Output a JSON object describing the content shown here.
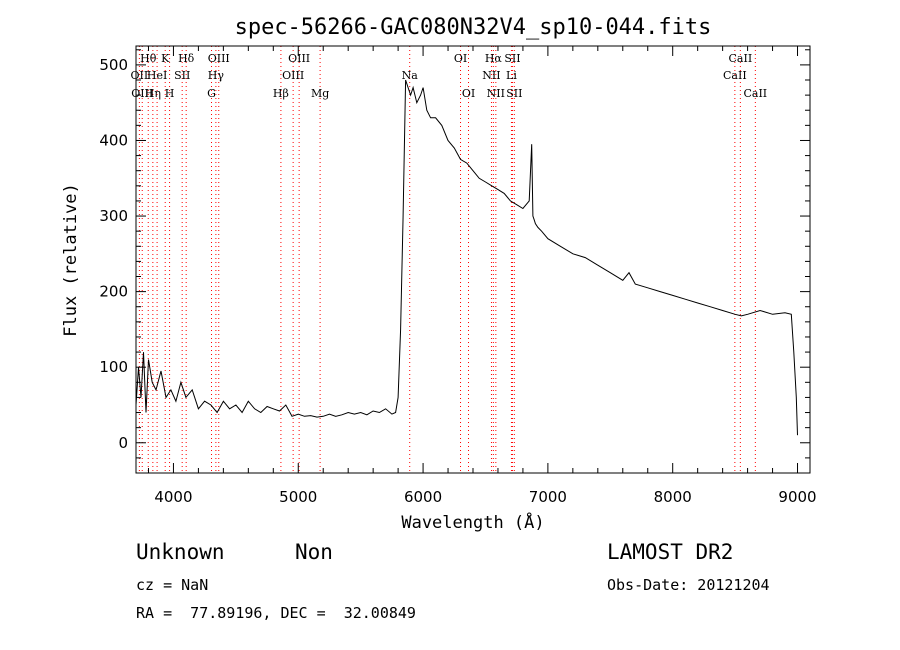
{
  "chart_data": {
    "type": "line",
    "title": "spec-56266-GAC080N32V4_sp10-044.fits",
    "xlabel": "Wavelength (Å)",
    "ylabel": "Flux (relative)",
    "xlim": [
      3700,
      9100
    ],
    "ylim": [
      -40,
      525
    ],
    "xticks": [
      4000,
      5000,
      6000,
      7000,
      8000,
      9000
    ],
    "yticks": [
      0,
      100,
      200,
      300,
      400,
      500
    ],
    "line_color": "#000000",
    "marker_color": "#ff0000",
    "series": [
      {
        "values_x": [
          3700,
          3720,
          3740,
          3760,
          3780,
          3800,
          3830,
          3860,
          3900,
          3940,
          3980,
          4020,
          4060,
          4100,
          4150,
          4200,
          4250,
          4300,
          4350,
          4400,
          4450,
          4500,
          4550,
          4600,
          4650,
          4700,
          4750,
          4800,
          4850,
          4900,
          4950,
          5000,
          5050,
          5100,
          5150,
          5200,
          5250,
          5300,
          5350,
          5400,
          5450,
          5500,
          5550,
          5600,
          5650,
          5700,
          5750,
          5780,
          5800,
          5820,
          5840,
          5860,
          5880,
          5900,
          5920,
          5950,
          5980,
          6000,
          6030,
          6060,
          6100,
          6150,
          6200,
          6250,
          6300,
          6350,
          6400,
          6450,
          6500,
          6550,
          6600,
          6650,
          6700,
          6750,
          6800,
          6850,
          6870,
          6880,
          6890,
          6900,
          6920,
          6950,
          7000,
          7100,
          7200,
          7300,
          7400,
          7500,
          7600,
          7650,
          7700,
          7800,
          7900,
          8000,
          8100,
          8200,
          8300,
          8400,
          8500,
          8550,
          8600,
          8700,
          8800,
          8900,
          8950,
          8970,
          8990,
          9000
        ],
        "values_y": [
          50,
          100,
          60,
          120,
          40,
          110,
          80,
          70,
          95,
          60,
          70,
          55,
          80,
          60,
          70,
          45,
          55,
          50,
          40,
          55,
          45,
          50,
          40,
          55,
          45,
          40,
          48,
          45,
          42,
          50,
          35,
          38,
          35,
          36,
          34,
          35,
          38,
          35,
          37,
          40,
          38,
          40,
          37,
          42,
          40,
          45,
          38,
          40,
          60,
          150,
          300,
          480,
          470,
          460,
          470,
          450,
          460,
          470,
          440,
          430,
          430,
          420,
          400,
          390,
          375,
          370,
          360,
          350,
          345,
          340,
          335,
          330,
          320,
          315,
          310,
          320,
          395,
          300,
          295,
          290,
          285,
          280,
          270,
          260,
          250,
          245,
          235,
          225,
          215,
          225,
          210,
          205,
          200,
          195,
          190,
          185,
          180,
          175,
          170,
          168,
          170,
          175,
          170,
          172,
          170,
          120,
          60,
          10
        ]
      }
    ],
    "lines": [
      {
        "x": 3727,
        "label": "OII",
        "row": 1
      },
      {
        "x": 3750,
        "label": "OIII",
        "row": 2
      },
      {
        "x": 3798,
        "label": "Hθ",
        "row": 0
      },
      {
        "x": 3835,
        "label": "Hη",
        "row": 2
      },
      {
        "x": 3869,
        "label": "HeI",
        "row": 1
      },
      {
        "x": 3934,
        "label": "K",
        "row": 0
      },
      {
        "x": 3969,
        "label": "H",
        "row": 2
      },
      {
        "x": 4070,
        "label": "SII",
        "row": 1
      },
      {
        "x": 4102,
        "label": "Hδ",
        "row": 0
      },
      {
        "x": 4305,
        "label": "G",
        "row": 2
      },
      {
        "x": 4340,
        "label": "Hγ",
        "row": 1
      },
      {
        "x": 4363,
        "label": "OIII",
        "row": 0
      },
      {
        "x": 4861,
        "label": "Hβ",
        "row": 2
      },
      {
        "x": 4959,
        "label": "OIII",
        "row": 1
      },
      {
        "x": 5007,
        "label": "OIII",
        "row": 0
      },
      {
        "x": 5175,
        "label": "Mg",
        "row": 2
      },
      {
        "x": 5893,
        "label": "Na",
        "row": 1
      },
      {
        "x": 6300,
        "label": "OI",
        "row": 0
      },
      {
        "x": 6364,
        "label": "OI",
        "row": 2
      },
      {
        "x": 6548,
        "label": "NII",
        "row": 1
      },
      {
        "x": 6563,
        "label": "Hα",
        "row": 0
      },
      {
        "x": 6583,
        "label": "NII",
        "row": 2
      },
      {
        "x": 6708,
        "label": "Li",
        "row": 1
      },
      {
        "x": 6716,
        "label": "SII",
        "row": 0
      },
      {
        "x": 6731,
        "label": "SII",
        "row": 2
      },
      {
        "x": 8498,
        "label": "CaII",
        "row": 1
      },
      {
        "x": 8542,
        "label": "CaII",
        "row": 0
      },
      {
        "x": 8662,
        "label": "CaII",
        "row": 2
      }
    ]
  },
  "info": {
    "class": "Unknown",
    "subclass": "Non",
    "cz": "cz = NaN",
    "coords": "RA =  77.89196, DEC =  32.00849",
    "survey": "LAMOST DR2",
    "obs_date": "Obs-Date: 20121204"
  }
}
